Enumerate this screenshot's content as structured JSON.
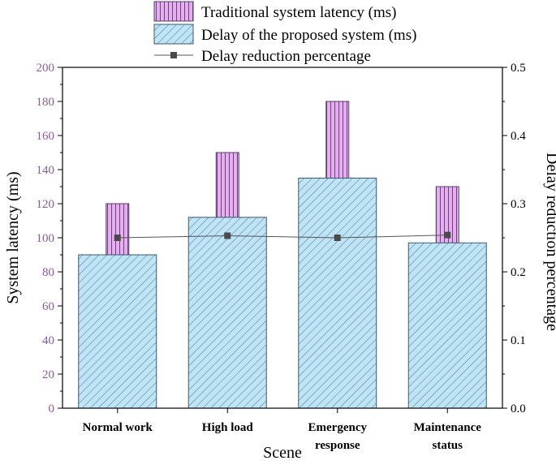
{
  "chart_data": {
    "type": "bar",
    "title": "",
    "xlabel": "Scene",
    "ylabel": "System latency (ms)",
    "y2label": "Delay reduction percentage",
    "categories": [
      [
        "Normal work"
      ],
      [
        "High load"
      ],
      [
        "Emergency",
        "response"
      ],
      [
        "Maintenance",
        "status"
      ]
    ],
    "ylim": [
      0,
      200
    ],
    "y_ticks": [
      "0",
      "20",
      "40",
      "60",
      "80",
      "100",
      "120",
      "140",
      "160",
      "180",
      "200"
    ],
    "y2lim": [
      0,
      0.5
    ],
    "y2_ticks": [
      "0.0",
      "0.1",
      "0.2",
      "0.3",
      "0.4",
      "0.5"
    ],
    "legend_position": "top-center",
    "series": [
      {
        "name": "Traditional system latency (ms)",
        "kind": "bar",
        "axis": "left",
        "values": [
          120,
          150,
          180,
          130
        ],
        "fill": "#e6aef0",
        "stroke": "#5a3a6a",
        "hatch": "vertical"
      },
      {
        "name": "Delay of the proposed system (ms)",
        "kind": "bar",
        "axis": "left",
        "values": [
          90,
          112,
          135,
          97
        ],
        "fill": "#bfe3f7",
        "stroke": "#3c5a6e",
        "hatch": "diagonal"
      },
      {
        "name": "Delay reduction percentage",
        "kind": "line",
        "axis": "right",
        "values": [
          0.25,
          0.253,
          0.25,
          0.254
        ],
        "color": "#555555",
        "marker": "square"
      }
    ],
    "colors": {
      "left_axis": "#8a5a9c",
      "right_axis": "#000000"
    }
  }
}
